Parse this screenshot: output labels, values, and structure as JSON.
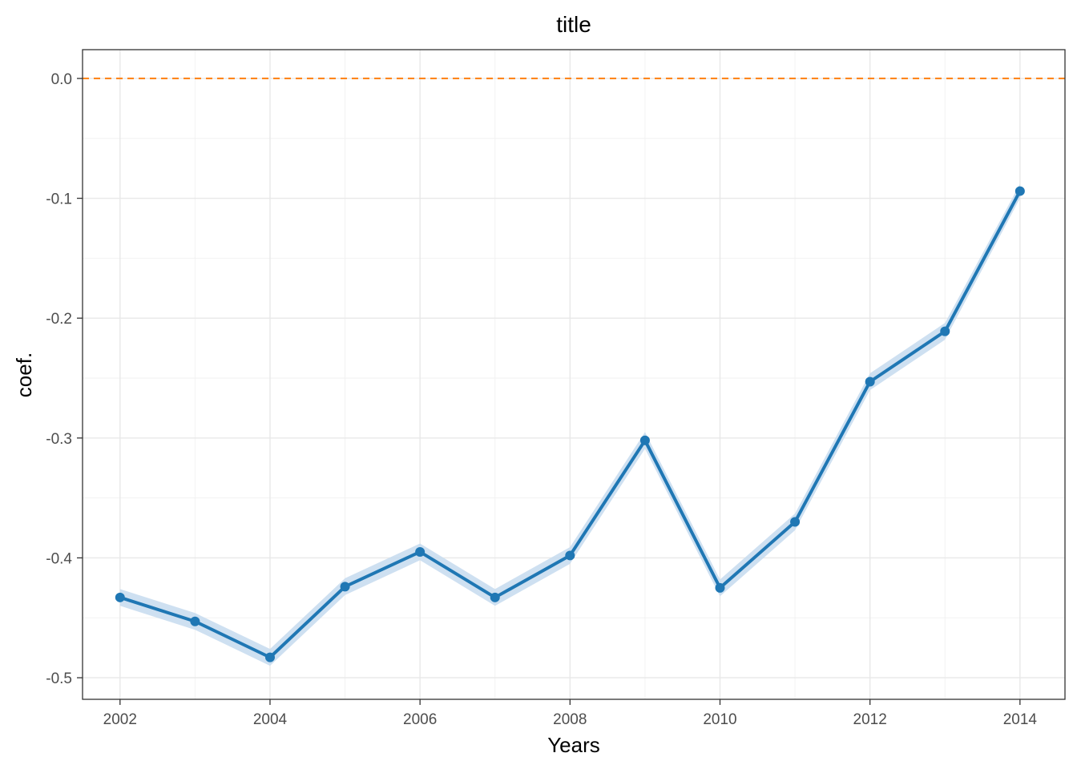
{
  "chart_data": {
    "type": "line",
    "title": "title",
    "xlabel": "Years",
    "ylabel": "coef.",
    "x": [
      2002,
      2003,
      2004,
      2005,
      2006,
      2007,
      2008,
      2009,
      2010,
      2011,
      2012,
      2013,
      2014
    ],
    "series": [
      {
        "values": [
          -0.433,
          -0.453,
          -0.483,
          -0.424,
          -0.395,
          -0.433,
          -0.398,
          -0.302,
          -0.425,
          -0.37,
          -0.253,
          -0.211,
          -0.094
        ],
        "lower": [
          -0.44,
          -0.46,
          -0.49,
          -0.431,
          -0.402,
          -0.44,
          -0.405,
          -0.309,
          -0.432,
          -0.377,
          -0.26,
          -0.218,
          -0.1
        ],
        "upper": [
          -0.426,
          -0.446,
          -0.476,
          -0.417,
          -0.388,
          -0.426,
          -0.391,
          -0.295,
          -0.418,
          -0.363,
          -0.246,
          -0.204,
          -0.088
        ],
        "color": "#1f77b4",
        "band_color": "#c6dbef"
      }
    ],
    "reference_line": {
      "y": 0.0,
      "color": "#ff7f0e",
      "style": "dashed"
    },
    "xlim": [
      2001.5,
      2014.6
    ],
    "ylim": [
      -0.518,
      0.024
    ],
    "x_ticks": [
      2002,
      2004,
      2006,
      2008,
      2010,
      2012,
      2014
    ],
    "x_tick_labels": [
      "2002",
      "2004",
      "2006",
      "2008",
      "2010",
      "2012",
      "2014"
    ],
    "y_ticks": [
      0.0,
      -0.1,
      -0.2,
      -0.3,
      -0.4,
      -0.5
    ],
    "y_tick_labels": [
      "0.0",
      "-0.1",
      "-0.2",
      "-0.3",
      "-0.4",
      "-0.5"
    ],
    "grid": true,
    "legend": "none"
  }
}
